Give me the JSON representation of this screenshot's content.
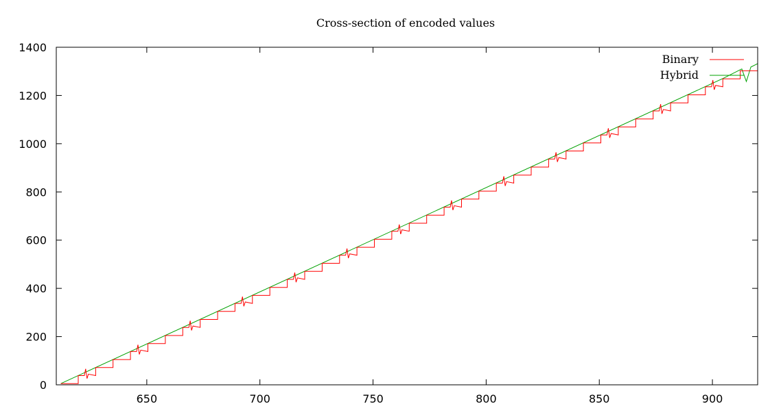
{
  "chart_data": {
    "type": "line",
    "title": "Cross-section of encoded values",
    "xlabel": "",
    "ylabel": "",
    "xlim": [
      610,
      920
    ],
    "ylim": [
      0,
      1400
    ],
    "x_ticks": [
      650,
      700,
      750,
      800,
      850,
      900
    ],
    "y_ticks": [
      0,
      200,
      400,
      600,
      800,
      1000,
      1200,
      1400
    ],
    "grid": false,
    "legend_position": "top-right",
    "series": [
      {
        "name": "Binary",
        "color": "#ff0000",
        "style": "stepped",
        "x_start": 612,
        "x_end": 920,
        "step_width": 7.7,
        "slope_per_unit": 4.32,
        "y_start": 5
      },
      {
        "name": "Hybrid",
        "color": "#00a000",
        "style": "linear",
        "points": [
          [
            612,
            5
          ],
          [
            905,
            1272
          ],
          [
            913,
            1310
          ],
          [
            915,
            1258
          ],
          [
            917,
            1318
          ],
          [
            920,
            1332
          ]
        ]
      }
    ]
  }
}
